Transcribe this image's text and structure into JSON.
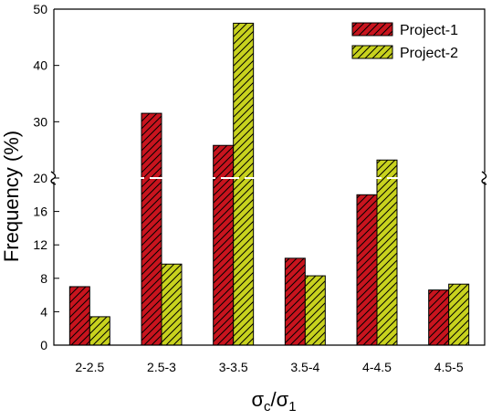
{
  "chart_data": {
    "type": "bar",
    "title": "",
    "xlabel_parts": {
      "sigma1": "σ",
      "sub1": "c",
      "slash": "/",
      "sigma2": "σ",
      "sub2": "1"
    },
    "ylabel": "Frequency (%)",
    "categories": [
      "2-2.5",
      "2.5-3",
      "3-3.5",
      "3.5-4",
      "4-4.5",
      "4.5-5"
    ],
    "series": [
      {
        "name": "Project-1",
        "color": "#C8141E",
        "values": [
          7.0,
          31.5,
          25.8,
          10.4,
          18.0,
          6.6
        ]
      },
      {
        "name": "Project-2",
        "color": "#C8D21E",
        "values": [
          3.4,
          9.7,
          47.5,
          8.3,
          23.2,
          7.3
        ]
      }
    ],
    "y_axis": {
      "type": "broken",
      "lower_segment": {
        "range": [
          0,
          20
        ],
        "ticks": [
          0,
          4,
          8,
          12,
          16,
          20
        ]
      },
      "upper_segment": {
        "range": [
          20,
          50
        ],
        "ticks": [
          30,
          40,
          50
        ]
      }
    },
    "y_tick_labels": [
      "0",
      "4",
      "8",
      "12",
      "16",
      "20",
      "30",
      "40",
      "50"
    ],
    "grid": false,
    "legend_position": "top-right",
    "bar_pattern": "diagonal-hatch"
  }
}
